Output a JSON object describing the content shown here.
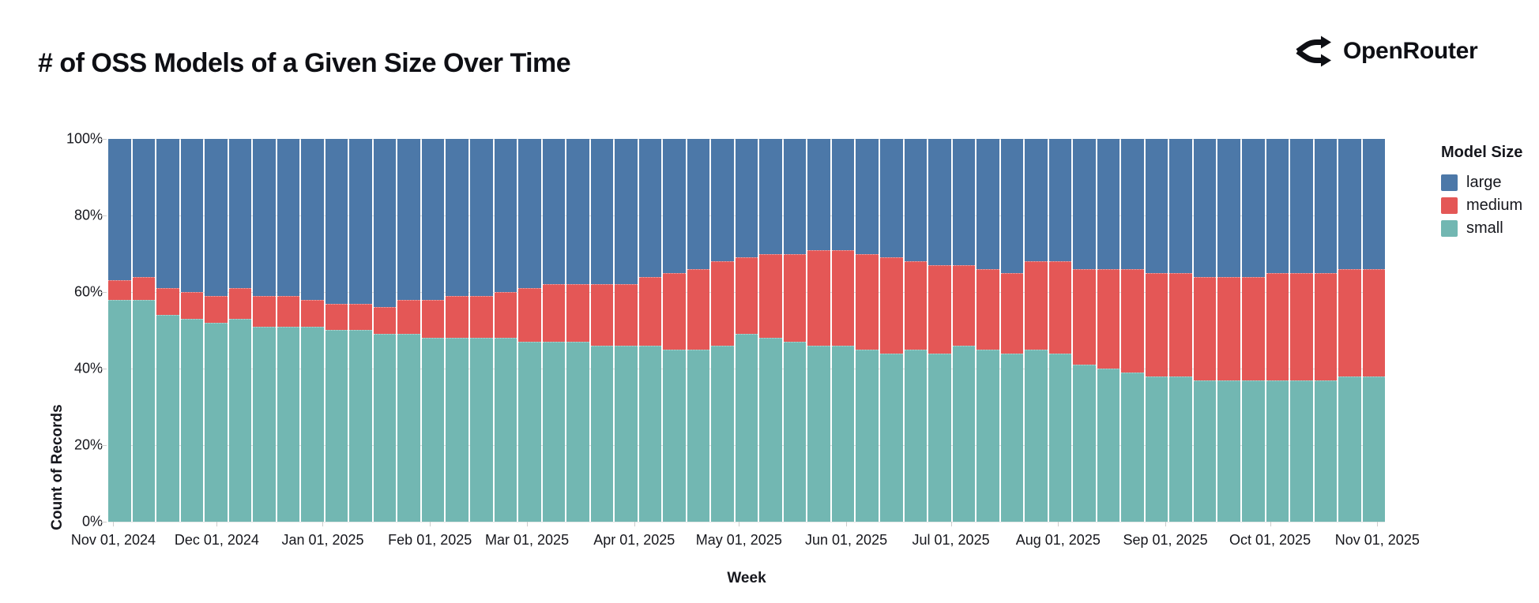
{
  "header": {
    "title": "# of OSS Models of a Given Size Over Time",
    "brand": "OpenRouter"
  },
  "legend": {
    "title": "Model Size",
    "items": [
      {
        "label": "large",
        "color": "#4c78a8"
      },
      {
        "label": "medium",
        "color": "#e45756"
      },
      {
        "label": "small",
        "color": "#72b7b2"
      }
    ]
  },
  "chart_data": {
    "type": "bar",
    "stacked": true,
    "normalized": true,
    "title": "# of OSS Models of a Given Size Over Time",
    "xlabel": "Week",
    "ylabel": "Count of Records",
    "ylim": [
      "0%",
      "100%"
    ],
    "grid": true,
    "legend_position": "right",
    "y_ticks": [
      "0%",
      "20%",
      "40%",
      "60%",
      "80%",
      "100%"
    ],
    "x_ticks": [
      {
        "label": "Nov 01, 2024",
        "pos": 0.004
      },
      {
        "label": "Dec 01, 2024",
        "pos": 0.085
      },
      {
        "label": "Jan 01, 2025",
        "pos": 0.168
      },
      {
        "label": "Feb 01, 2025",
        "pos": 0.252
      },
      {
        "label": "Mar 01, 2025",
        "pos": 0.328
      },
      {
        "label": "Apr 01, 2025",
        "pos": 0.412
      },
      {
        "label": "May 01, 2025",
        "pos": 0.494
      },
      {
        "label": "Jun 01, 2025",
        "pos": 0.578
      },
      {
        "label": "Jul 01, 2025",
        "pos": 0.66
      },
      {
        "label": "Aug 01, 2025",
        "pos": 0.744
      },
      {
        "label": "Sep 01, 2025",
        "pos": 0.828
      },
      {
        "label": "Oct 01, 2025",
        "pos": 0.91
      },
      {
        "label": "Nov 01, 2025",
        "pos": 0.994
      }
    ],
    "weeks": 53,
    "unit": "percent of records",
    "series": [
      {
        "name": "small",
        "color": "#72b7b2",
        "values": [
          58,
          58,
          54,
          53,
          52,
          53,
          51,
          51,
          51,
          50,
          50,
          49,
          49,
          48,
          48,
          48,
          48,
          47,
          47,
          47,
          46,
          46,
          46,
          45,
          45,
          46,
          49,
          48,
          47,
          46,
          46,
          45,
          44,
          45,
          44,
          46,
          45,
          44,
          45,
          44,
          41,
          40,
          39,
          38,
          38,
          37,
          37,
          37,
          37,
          37,
          37,
          38,
          38
        ]
      },
      {
        "name": "medium",
        "color": "#e45756",
        "values": [
          5,
          6,
          7,
          7,
          7,
          8,
          8,
          8,
          7,
          7,
          7,
          7,
          9,
          10,
          11,
          11,
          12,
          14,
          15,
          15,
          16,
          16,
          18,
          20,
          21,
          22,
          20,
          22,
          23,
          25,
          25,
          25,
          25,
          23,
          23,
          21,
          21,
          21,
          23,
          24,
          25,
          26,
          27,
          27,
          27,
          27,
          27,
          27,
          28,
          28,
          28,
          28,
          28
        ]
      },
      {
        "name": "large",
        "color": "#4c78a8",
        "values": [
          37,
          36,
          39,
          40,
          41,
          39,
          41,
          41,
          42,
          43,
          43,
          44,
          42,
          42,
          41,
          41,
          40,
          39,
          38,
          38,
          38,
          38,
          36,
          35,
          34,
          32,
          31,
          30,
          30,
          29,
          29,
          30,
          31,
          32,
          33,
          33,
          34,
          35,
          32,
          32,
          34,
          34,
          34,
          35,
          35,
          36,
          36,
          36,
          35,
          35,
          35,
          34,
          34
        ]
      }
    ]
  }
}
